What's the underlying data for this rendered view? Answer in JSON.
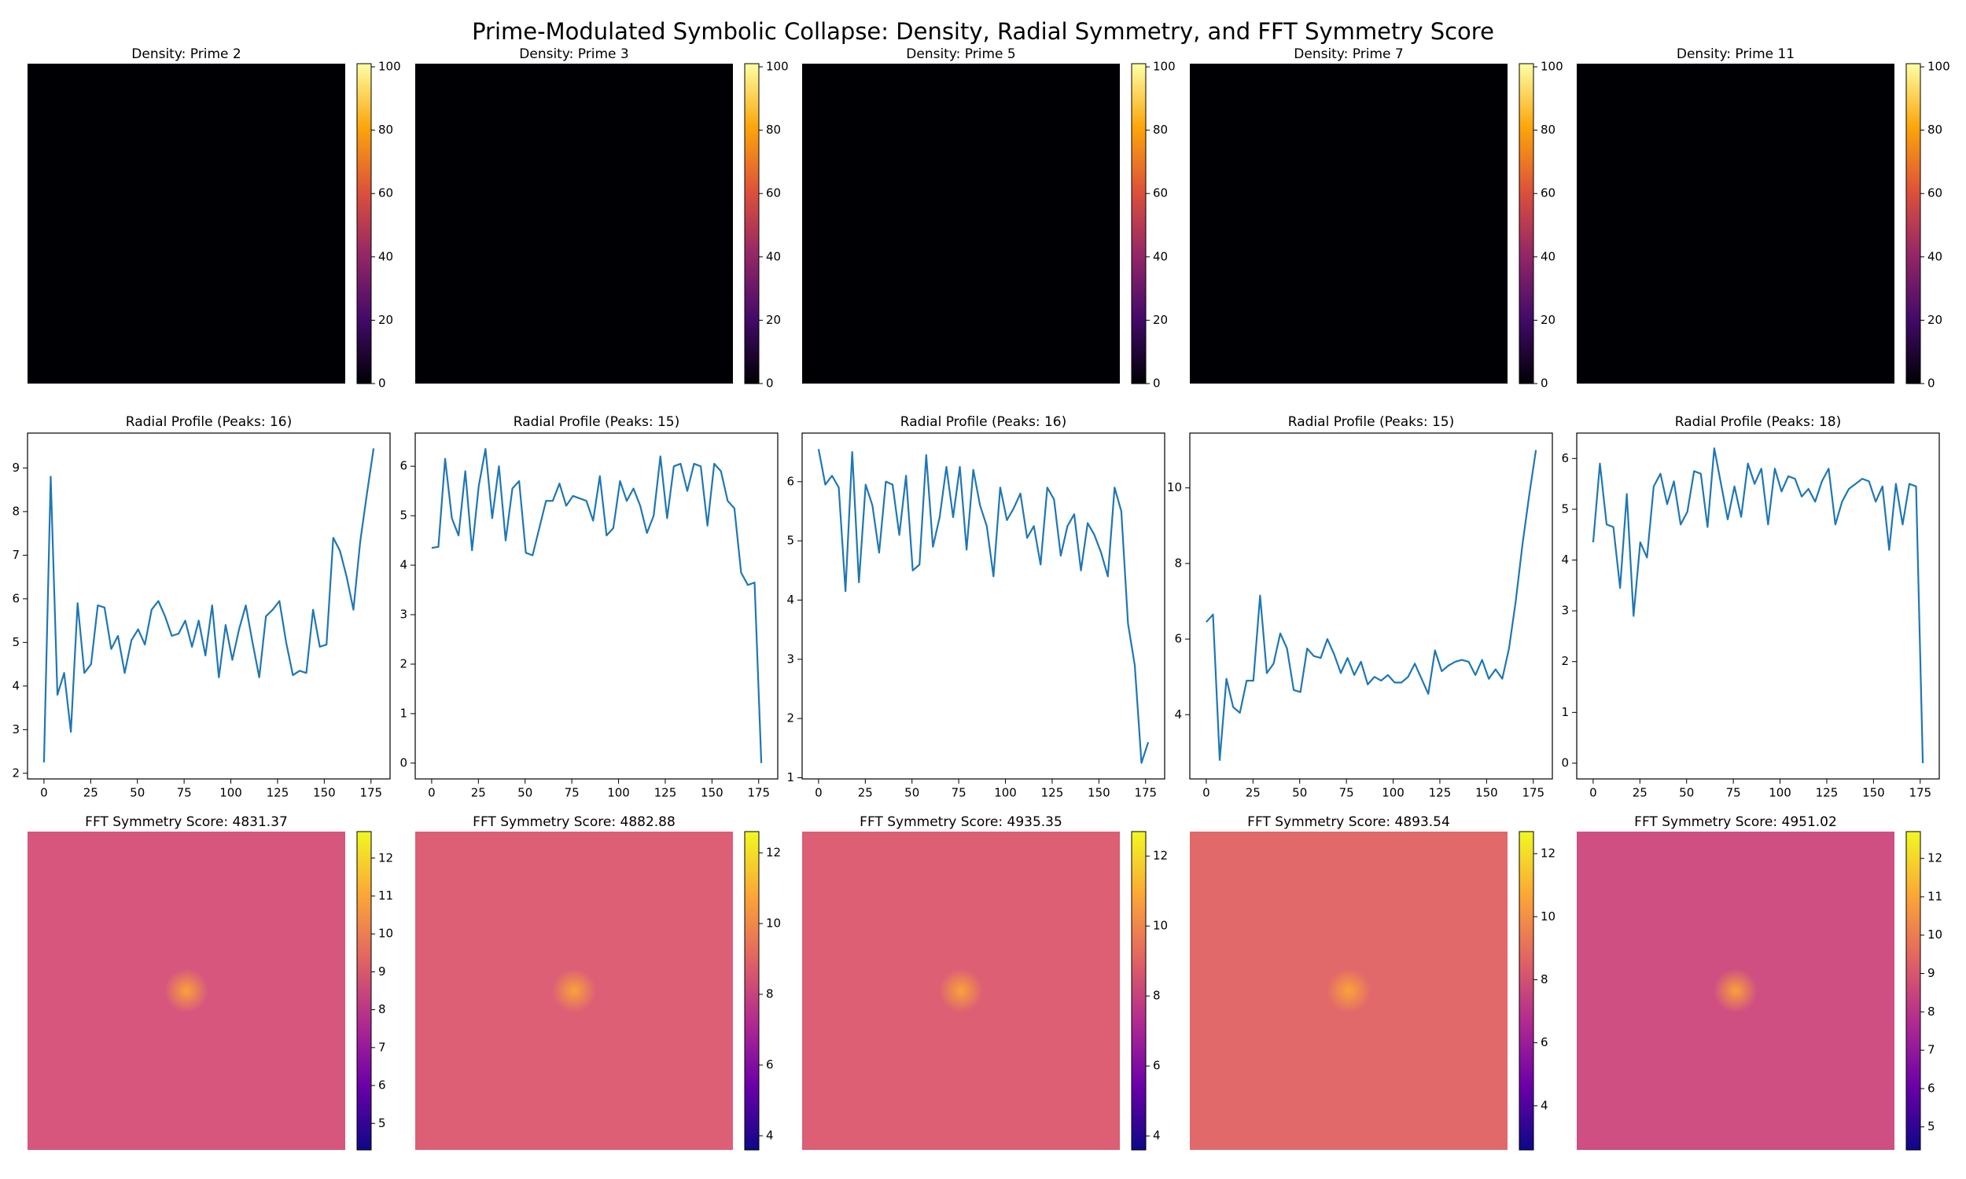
{
  "title": "Prime-Modulated Symbolic Collapse: Density, Radial Symmetry, and FFT Symmetry Score",
  "chart_data": [
    {
      "type": "heatmap",
      "title": "Density: Prime 2",
      "colors": [
        "#000004",
        "#420a68",
        "#932667",
        "#dd513a",
        "#fca50a",
        "#fcffa4"
      ],
      "image_color": "#000004",
      "clim": [
        0,
        101
      ],
      "cticks": [
        0,
        20,
        40,
        60,
        80,
        100
      ]
    },
    {
      "type": "heatmap",
      "title": "Density: Prime 3",
      "colors": [
        "#000004",
        "#420a68",
        "#932667",
        "#dd513a",
        "#fca50a",
        "#fcffa4"
      ],
      "image_color": "#000004",
      "clim": [
        0,
        101
      ],
      "cticks": [
        0,
        20,
        40,
        60,
        80,
        100
      ]
    },
    {
      "type": "heatmap",
      "title": "Density: Prime 5",
      "colors": [
        "#000004",
        "#420a68",
        "#932667",
        "#dd513a",
        "#fca50a",
        "#fcffa4"
      ],
      "image_color": "#000004",
      "clim": [
        0,
        101
      ],
      "cticks": [
        0,
        20,
        40,
        60,
        80,
        100
      ]
    },
    {
      "type": "heatmap",
      "title": "Density: Prime 7",
      "colors": [
        "#000004",
        "#420a68",
        "#932667",
        "#dd513a",
        "#fca50a",
        "#fcffa4"
      ],
      "image_color": "#000004",
      "clim": [
        0,
        101
      ],
      "cticks": [
        0,
        20,
        40,
        60,
        80,
        100
      ]
    },
    {
      "type": "heatmap",
      "title": "Density: Prime 11",
      "colors": [
        "#000004",
        "#420a68",
        "#932667",
        "#dd513a",
        "#fca50a",
        "#fcffa4"
      ],
      "image_color": "#000004",
      "clim": [
        0,
        101
      ],
      "cticks": [
        0,
        20,
        40,
        60,
        80,
        100
      ]
    },
    {
      "type": "line",
      "title": "Radial Profile (Peaks: 16)",
      "color": "#1f77b4",
      "xlim": [
        -8.8,
        185.2
      ],
      "xticks": [
        0,
        25,
        50,
        75,
        100,
        125,
        150,
        175
      ],
      "ylim": [
        1.87,
        9.8
      ],
      "yticks": [
        2,
        3,
        4,
        5,
        6,
        7,
        8,
        9
      ],
      "x": [
        0,
        3.6,
        7.2,
        10.8,
        14.4,
        18,
        21.6,
        25.2,
        28.8,
        32.4,
        36,
        39.6,
        43.2,
        46.8,
        50.4,
        54,
        57.6,
        61.2,
        64.8,
        68.4,
        72,
        75.6,
        79.2,
        82.8,
        86.4,
        90,
        93.6,
        97.2,
        100.8,
        104.4,
        108,
        111.6,
        115.2,
        118.8,
        122.4,
        126,
        129.6,
        133.2,
        136.8,
        140.4,
        144,
        147.6,
        151.2,
        154.8,
        158.4,
        162,
        165.6,
        169.2,
        172.8,
        176.4
      ],
      "values": [
        2.25,
        8.8,
        3.8,
        4.3,
        2.95,
        5.9,
        4.3,
        4.5,
        5.85,
        5.8,
        4.85,
        5.15,
        4.3,
        5.05,
        5.3,
        4.95,
        5.75,
        5.95,
        5.6,
        5.15,
        5.2,
        5.5,
        4.9,
        5.5,
        4.7,
        5.85,
        4.2,
        5.4,
        4.6,
        5.3,
        5.85,
        5.0,
        4.2,
        5.6,
        5.75,
        5.95,
        5.0,
        4.25,
        4.35,
        4.3,
        5.75,
        4.9,
        4.95,
        7.4,
        7.1,
        6.5,
        5.75,
        7.3,
        8.4,
        9.45
      ]
    },
    {
      "type": "line",
      "title": "Radial Profile (Peaks: 15)",
      "color": "#1f77b4",
      "xlim": [
        -8.8,
        185.2
      ],
      "xticks": [
        0,
        25,
        50,
        75,
        100,
        125,
        150,
        175
      ],
      "ylim": [
        -0.32,
        6.67
      ],
      "yticks": [
        0,
        1,
        2,
        3,
        4,
        5,
        6
      ],
      "x": [
        0,
        3.6,
        7.2,
        10.8,
        14.4,
        18,
        21.6,
        25.2,
        28.8,
        32.4,
        36,
        39.6,
        43.2,
        46.8,
        50.4,
        54,
        57.6,
        61.2,
        64.8,
        68.4,
        72,
        75.6,
        79.2,
        82.8,
        86.4,
        90,
        93.6,
        97.2,
        100.8,
        104.4,
        108,
        111.6,
        115.2,
        118.8,
        122.4,
        126,
        129.6,
        133.2,
        136.8,
        140.4,
        144,
        147.6,
        151.2,
        154.8,
        158.4,
        162,
        165.6,
        169.2,
        172.8,
        176.4
      ],
      "values": [
        4.35,
        4.37,
        6.15,
        4.95,
        4.6,
        5.9,
        4.3,
        5.6,
        6.35,
        4.95,
        6.0,
        4.5,
        5.55,
        5.7,
        4.25,
        4.2,
        4.75,
        5.3,
        5.3,
        5.65,
        5.2,
        5.4,
        5.35,
        5.3,
        4.9,
        5.8,
        4.6,
        4.75,
        5.7,
        5.3,
        5.55,
        5.2,
        4.65,
        5.0,
        6.2,
        4.95,
        6.0,
        6.05,
        5.5,
        6.05,
        6.0,
        4.8,
        6.05,
        5.9,
        5.3,
        5.15,
        3.85,
        3.6,
        3.65,
        0.0
      ]
    },
    {
      "type": "line",
      "title": "Radial Profile (Peaks: 16)",
      "color": "#1f77b4",
      "xlim": [
        -8.8,
        185.2
      ],
      "xticks": [
        0,
        25,
        50,
        75,
        100,
        125,
        150,
        175
      ],
      "ylim": [
        0.98,
        6.82
      ],
      "yticks": [
        1,
        2,
        3,
        4,
        5,
        6
      ],
      "x": [
        0,
        3.6,
        7.2,
        10.8,
        14.4,
        18,
        21.6,
        25.2,
        28.8,
        32.4,
        36,
        39.6,
        43.2,
        46.8,
        50.4,
        54,
        57.6,
        61.2,
        64.8,
        68.4,
        72,
        75.6,
        79.2,
        82.8,
        86.4,
        90,
        93.6,
        97.2,
        100.8,
        104.4,
        108,
        111.6,
        115.2,
        118.8,
        122.4,
        126,
        129.6,
        133.2,
        136.8,
        140.4,
        144,
        147.6,
        151.2,
        154.8,
        158.4,
        162,
        165.6,
        169.2,
        172.8,
        176.4
      ],
      "values": [
        6.55,
        5.95,
        6.1,
        5.9,
        4.15,
        6.5,
        4.3,
        5.95,
        5.6,
        4.8,
        6.0,
        5.95,
        5.1,
        6.1,
        4.5,
        4.6,
        6.45,
        4.9,
        5.4,
        6.25,
        5.4,
        6.25,
        4.85,
        6.2,
        5.6,
        5.25,
        4.4,
        5.9,
        5.35,
        5.55,
        5.8,
        5.05,
        5.25,
        4.6,
        5.9,
        5.7,
        4.75,
        5.25,
        5.45,
        4.5,
        5.3,
        5.1,
        4.8,
        4.4,
        5.9,
        5.5,
        3.6,
        2.9,
        1.25,
        1.6
      ]
    },
    {
      "type": "line",
      "title": "Radial Profile (Peaks: 15)",
      "color": "#1f77b4",
      "xlim": [
        -8.8,
        185.2
      ],
      "xticks": [
        0,
        25,
        50,
        75,
        100,
        125,
        150,
        175
      ],
      "ylim": [
        2.3,
        11.45
      ],
      "yticks": [
        4,
        6,
        8,
        10
      ],
      "x": [
        0,
        3.6,
        7.2,
        10.8,
        14.4,
        18,
        21.6,
        25.2,
        28.8,
        32.4,
        36,
        39.6,
        43.2,
        46.8,
        50.4,
        54,
        57.6,
        61.2,
        64.8,
        68.4,
        72,
        75.6,
        79.2,
        82.8,
        86.4,
        90,
        93.6,
        97.2,
        100.8,
        104.4,
        108,
        111.6,
        115.2,
        118.8,
        122.4,
        126,
        129.6,
        133.2,
        136.8,
        140.4,
        144,
        147.6,
        151.2,
        154.8,
        158.4,
        162,
        165.6,
        169.2,
        172.8,
        176.4
      ],
      "values": [
        6.45,
        6.65,
        2.8,
        4.95,
        4.2,
        4.05,
        4.9,
        4.9,
        7.15,
        5.1,
        5.35,
        6.15,
        5.75,
        4.65,
        4.6,
        5.75,
        5.55,
        5.5,
        6.0,
        5.6,
        5.1,
        5.5,
        5.05,
        5.4,
        4.8,
        5.0,
        4.9,
        5.05,
        4.85,
        4.85,
        5.0,
        5.35,
        4.95,
        4.55,
        5.7,
        5.15,
        5.3,
        5.4,
        5.45,
        5.4,
        5.05,
        5.45,
        4.95,
        5.2,
        4.95,
        5.75,
        7.0,
        8.5,
        9.8,
        11.0
      ]
    },
    {
      "type": "line",
      "title": "Radial Profile (Peaks: 18)",
      "color": "#1f77b4",
      "xlim": [
        -8.8,
        185.2
      ],
      "xticks": [
        0,
        25,
        50,
        75,
        100,
        125,
        150,
        175
      ],
      "ylim": [
        -0.31,
        6.5
      ],
      "yticks": [
        0,
        1,
        2,
        3,
        4,
        5,
        6
      ],
      "x": [
        0,
        3.6,
        7.2,
        10.8,
        14.4,
        18,
        21.6,
        25.2,
        28.8,
        32.4,
        36,
        39.6,
        43.2,
        46.8,
        50.4,
        54,
        57.6,
        61.2,
        64.8,
        68.4,
        72,
        75.6,
        79.2,
        82.8,
        86.4,
        90,
        93.6,
        97.2,
        100.8,
        104.4,
        108,
        111.6,
        115.2,
        118.8,
        122.4,
        126,
        129.6,
        133.2,
        136.8,
        140.4,
        144,
        147.6,
        151.2,
        154.8,
        158.4,
        162,
        165.6,
        169.2,
        172.8,
        176.4
      ],
      "values": [
        4.35,
        5.9,
        4.7,
        4.65,
        3.45,
        5.3,
        2.9,
        4.35,
        4.05,
        5.45,
        5.7,
        5.1,
        5.55,
        4.7,
        4.95,
        5.75,
        5.7,
        4.65,
        6.2,
        5.5,
        4.8,
        5.45,
        4.85,
        5.9,
        5.5,
        5.8,
        4.7,
        5.8,
        5.35,
        5.65,
        5.6,
        5.25,
        5.4,
        5.15,
        5.55,
        5.8,
        4.7,
        5.15,
        5.4,
        5.5,
        5.6,
        5.55,
        5.15,
        5.45,
        4.2,
        5.5,
        4.7,
        5.5,
        5.45,
        0.0
      ]
    },
    {
      "type": "heatmap",
      "title": "FFT Symmetry Score: 4831.37",
      "colors": [
        "#0d0887",
        "#6a00a8",
        "#b12a90",
        "#e16462",
        "#fca636",
        "#f0f921"
      ],
      "image_color": "#d6567e",
      "clim": [
        4.3,
        12.7
      ],
      "cticks": [
        5,
        6,
        7,
        8,
        9,
        10,
        11,
        12
      ]
    },
    {
      "type": "heatmap",
      "title": "FFT Symmetry Score: 4882.88",
      "colors": [
        "#0d0887",
        "#6a00a8",
        "#b12a90",
        "#e16462",
        "#fca636",
        "#f0f921"
      ],
      "image_color": "#dc5f76",
      "clim": [
        3.6,
        12.6
      ],
      "cticks": [
        4,
        6,
        8,
        10,
        12
      ]
    },
    {
      "type": "heatmap",
      "title": "FFT Symmetry Score: 4935.35",
      "colors": [
        "#0d0887",
        "#6a00a8",
        "#b12a90",
        "#e16462",
        "#fca636",
        "#f0f921"
      ],
      "image_color": "#dc5f74",
      "clim": [
        3.6,
        12.7
      ],
      "cticks": [
        4,
        6,
        8,
        10,
        12
      ]
    },
    {
      "type": "heatmap",
      "title": "FFT Symmetry Score: 4893.54",
      "colors": [
        "#0d0887",
        "#6a00a8",
        "#b12a90",
        "#e16462",
        "#fca636",
        "#f0f921"
      ],
      "image_color": "#e2696a",
      "clim": [
        2.6,
        12.7
      ],
      "cticks": [
        4,
        6,
        8,
        10,
        12
      ]
    },
    {
      "type": "heatmap",
      "title": "FFT Symmetry Score: 4951.02",
      "colors": [
        "#0d0887",
        "#6a00a8",
        "#b12a90",
        "#e16462",
        "#fca636",
        "#f0f921"
      ],
      "image_color": "#cf4f82",
      "clim": [
        4.4,
        12.7
      ],
      "cticks": [
        5,
        6,
        7,
        8,
        9,
        10,
        11,
        12
      ]
    }
  ]
}
